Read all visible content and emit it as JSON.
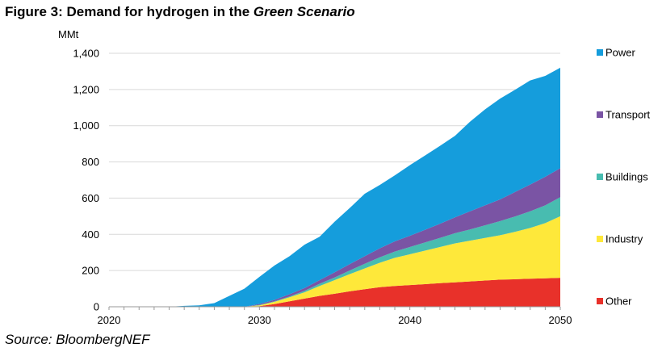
{
  "figure": {
    "title_prefix": "Figure 3: Demand for hydrogen in the ",
    "title_italic": "Green Scenario",
    "source": "Source: BloombergNEF"
  },
  "chart_data": {
    "type": "area",
    "stacked": true,
    "ylabel": "MMt",
    "xlim": [
      2020,
      2050
    ],
    "ylim": [
      0,
      1400
    ],
    "x_ticks": [
      "2020",
      "2030",
      "2040",
      "2050"
    ],
    "y_ticks": [
      "0",
      "200",
      "400",
      "600",
      "800",
      "1,000",
      "1,200",
      "1,400"
    ],
    "grid": "horizontal",
    "legend_position": "right",
    "x": [
      2020,
      2021,
      2022,
      2023,
      2024,
      2025,
      2026,
      2027,
      2028,
      2029,
      2030,
      2031,
      2032,
      2033,
      2034,
      2035,
      2036,
      2037,
      2038,
      2039,
      2040,
      2041,
      2042,
      2043,
      2044,
      2045,
      2046,
      2047,
      2048,
      2049,
      2050
    ],
    "series": [
      {
        "name": "Other",
        "color": "#e8312a",
        "values": [
          0,
          0,
          0,
          0,
          0,
          0,
          0,
          0,
          0,
          0,
          3,
          15,
          30,
          45,
          60,
          72,
          85,
          97,
          108,
          115,
          120,
          125,
          130,
          135,
          140,
          145,
          150,
          152,
          155,
          157,
          160
        ]
      },
      {
        "name": "Industry",
        "color": "#fee83a",
        "values": [
          0,
          0,
          0,
          0,
          0,
          0,
          0,
          0,
          0,
          0,
          5,
          12,
          22,
          35,
          55,
          75,
          95,
          115,
          135,
          155,
          170,
          185,
          200,
          215,
          225,
          235,
          245,
          262,
          280,
          305,
          340
        ]
      },
      {
        "name": "Buildings",
        "color": "#48bcb0",
        "values": [
          0,
          0,
          0,
          0,
          0,
          0,
          0,
          0,
          0,
          0,
          2,
          3,
          5,
          8,
          12,
          15,
          20,
          25,
          30,
          35,
          40,
          45,
          50,
          56,
          62,
          70,
          78,
          85,
          92,
          98,
          105
        ]
      },
      {
        "name": "Transport",
        "color": "#7a54a4",
        "values": [
          0,
          0,
          0,
          0,
          0,
          0,
          0,
          0,
          0,
          0,
          5,
          8,
          12,
          15,
          20,
          28,
          35,
          42,
          50,
          56,
          62,
          70,
          78,
          88,
          100,
          110,
          120,
          135,
          148,
          158,
          160
        ]
      },
      {
        "name": "Power",
        "color": "#159ddc",
        "values": [
          0,
          0,
          0,
          0,
          0,
          5,
          8,
          20,
          60,
          100,
          150,
          190,
          210,
          240,
          240,
          280,
          310,
          345,
          350,
          365,
          390,
          410,
          430,
          450,
          495,
          530,
          557,
          565,
          575,
          557,
          555
        ]
      }
    ],
    "legend_order": [
      "Power",
      "Transport",
      "Buildings",
      "Industry",
      "Other"
    ]
  }
}
